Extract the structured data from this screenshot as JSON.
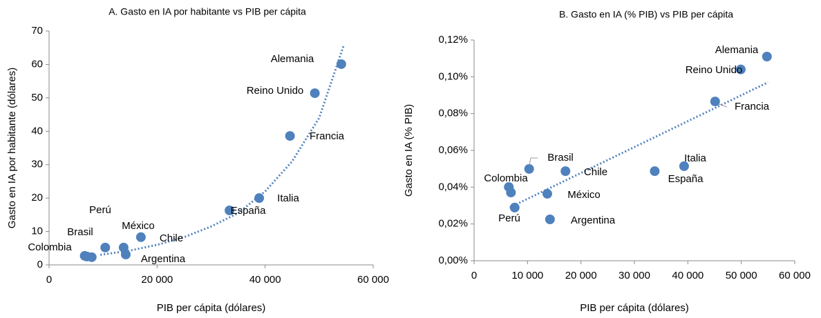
{
  "chart_data": [
    {
      "type": "scatter",
      "title": "A. Gasto en IA por habitante vs PIB per cápita",
      "x_label": "PIB per cápita (dólares)",
      "y_label": "Gasto en IA por habitante (dólares)",
      "labels": [
        "Colombia",
        null,
        "Perú",
        "Brasil",
        "México",
        "Argentina",
        "Chile",
        "España",
        "Italia",
        "Francia",
        "Reino Unido",
        "Alemania"
      ],
      "x": [
        6600,
        7000,
        7900,
        10400,
        13800,
        14200,
        17000,
        33400,
        38900,
        44600,
        49200,
        54100
      ],
      "values": [
        2.7,
        2.5,
        2.3,
        5.2,
        5.2,
        3.1,
        8.3,
        16.3,
        20.0,
        38.6,
        51.4,
        60.1
      ],
      "trendline": {
        "x": [
          9500,
          15000,
          20000,
          25000,
          30000,
          35000,
          40000,
          45000,
          50000,
          54500
        ],
        "values": [
          3,
          4.3,
          6,
          8.3,
          11.5,
          15.5,
          22,
          31,
          44,
          65.5
        ]
      },
      "color": "#4f81bd",
      "xlim": [
        0,
        60000
      ],
      "xticks": [
        0,
        {
          "value": 20000,
          "label": "20 000"
        },
        {
          "value": 40000,
          "label": "40 000"
        },
        {
          "value": 60000,
          "label": "60 000"
        }
      ],
      "ylim": [
        0,
        70
      ],
      "yticks": [
        0,
        10,
        20,
        30,
        40,
        50,
        60,
        70
      ]
    },
    {
      "type": "scatter",
      "title": "B. Gasto en IA (% PIB) vs PIB per cápita",
      "x_label": "PIB per cápita (dólares)",
      "y_label": "Gasto en IA (% PIB)",
      "labels": [
        "Colombia",
        null,
        "Perú",
        "Brasil",
        "México",
        "Argentina",
        "Chile",
        "España",
        "Italia",
        "Francia",
        "Reino Unido",
        "Alemania"
      ],
      "x": [
        6500,
        6900,
        7600,
        10300,
        13700,
        14200,
        17100,
        33800,
        39300,
        45100,
        49900,
        54800
      ],
      "values": [
        0.0401,
        0.0371,
        0.0289,
        0.0499,
        0.0364,
        0.0225,
        0.0487,
        0.0487,
        0.0514,
        0.0866,
        0.104,
        0.111
      ],
      "trendline": {
        "x": [
          6700,
          55000
        ],
        "values": [
          0.029,
          0.097
        ]
      },
      "color": "#4f81bd",
      "xlim": [
        0,
        60000
      ],
      "xticks": [
        0,
        {
          "value": 10000,
          "label": "10 000"
        },
        {
          "value": 20000,
          "label": "20 000"
        },
        {
          "value": 30000,
          "label": "30 000"
        },
        {
          "value": 40000,
          "label": "40 000"
        },
        {
          "value": 50000,
          "label": "50 000"
        },
        {
          "value": 60000,
          "label": "60 000"
        }
      ],
      "ylim": [
        0,
        0.12
      ],
      "yticks": [
        {
          "value": 0,
          "label": "0,00%"
        },
        {
          "value": 0.02,
          "label": "0,02%"
        },
        {
          "value": 0.04,
          "label": "0,04%"
        },
        {
          "value": 0.06,
          "label": "0,06%"
        },
        {
          "value": 0.08,
          "label": "0,08%"
        },
        {
          "value": 0.1,
          "label": "0,10%"
        },
        {
          "value": 0.12,
          "label": "0,12%"
        }
      ]
    }
  ]
}
